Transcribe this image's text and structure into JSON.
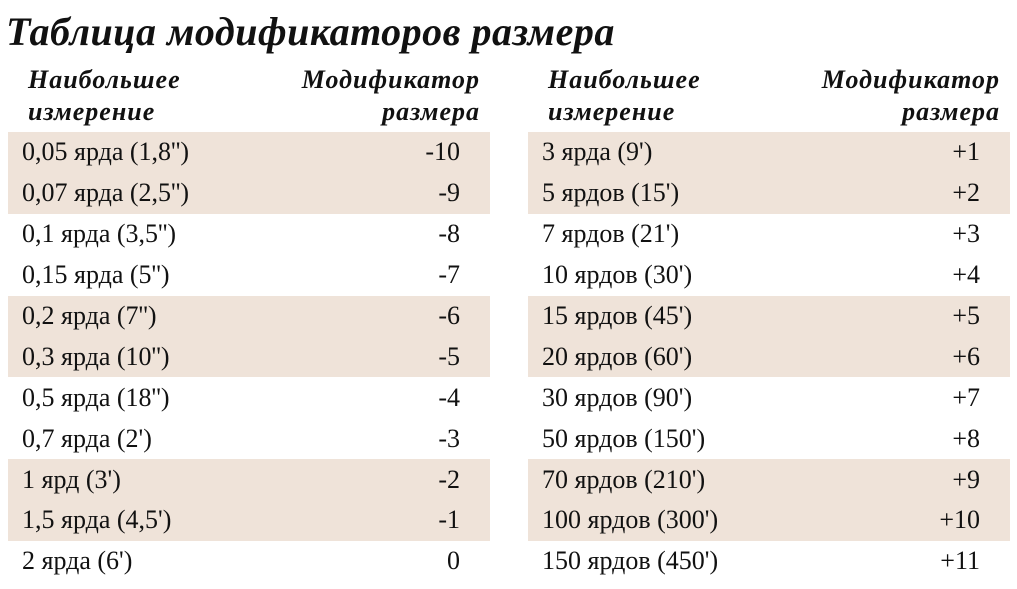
{
  "title": "Таблица модификаторов размера",
  "headers": {
    "measure": "Наибольшее\nизмерение",
    "modifier": "Модификатор\nразмера"
  },
  "left_rows": [
    {
      "measure": "0,05 ярда (1,8'')",
      "modifier": "-10"
    },
    {
      "measure": "0,07 ярда (2,5'')",
      "modifier": "-9"
    },
    {
      "measure": "0,1 ярда (3,5'')",
      "modifier": "-8"
    },
    {
      "measure": "0,15 ярда (5'')",
      "modifier": "-7"
    },
    {
      "measure": "0,2 ярда (7'')",
      "modifier": "-6"
    },
    {
      "measure": "0,3 ярда (10'')",
      "modifier": "-5"
    },
    {
      "measure": "0,5 ярда (18'')",
      "modifier": "-4"
    },
    {
      "measure": "0,7 ярда (2')",
      "modifier": "-3"
    },
    {
      "measure": "1 ярд (3')",
      "modifier": "-2"
    },
    {
      "measure": "1,5 ярда (4,5')",
      "modifier": "-1"
    },
    {
      "measure": "2 ярда (6')",
      "modifier": "0"
    }
  ],
  "right_rows": [
    {
      "measure": "3 ярда (9')",
      "modifier": "+1"
    },
    {
      "measure": "5 ярдов (15')",
      "modifier": "+2"
    },
    {
      "measure": "7 ярдов (21')",
      "modifier": "+3"
    },
    {
      "measure": "10 ярдов (30')",
      "modifier": "+4"
    },
    {
      "measure": "15 ярдов (45')",
      "modifier": "+5"
    },
    {
      "measure": "20 ярдов (60')",
      "modifier": "+6"
    },
    {
      "measure": "30 ярдов (90')",
      "modifier": "+7"
    },
    {
      "measure": "50 ярдов (150')",
      "modifier": "+8"
    },
    {
      "measure": "70 ярдов (210')",
      "modifier": "+9"
    },
    {
      "measure": "100 ярдов (300')",
      "modifier": "+10"
    },
    {
      "measure": "150 ярдов (450')",
      "modifier": "+11"
    }
  ],
  "colors": {
    "shade": "#efe3d9",
    "text": "#111111"
  }
}
